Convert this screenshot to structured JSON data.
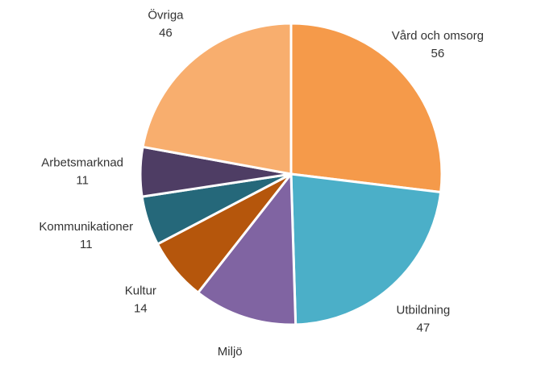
{
  "chart_data": {
    "type": "pie",
    "categories": [
      "Vård och omsorg",
      "Utbildning",
      "Miljö",
      "Kultur",
      "Kommunikationer",
      "Arbetsmarknad",
      "Övriga"
    ],
    "values": [
      56,
      47,
      23,
      14,
      11,
      11,
      46
    ],
    "colors": [
      "#f59a4a",
      "#4bafc8",
      "#8064a2",
      "#b5560c",
      "#25687a",
      "#4e3d64",
      "#f8ae6e"
    ]
  }
}
